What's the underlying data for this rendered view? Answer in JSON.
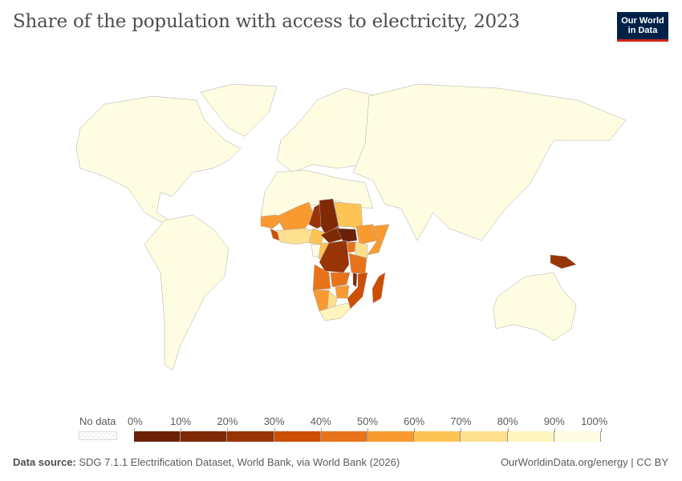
{
  "header": {
    "title": "Share of the population with access to electricity, 2023"
  },
  "logo": {
    "line1": "Our World",
    "line2": "in Data"
  },
  "legend": {
    "no_data_label": "No data",
    "tick_labels": [
      "0%",
      "10%",
      "20%",
      "30%",
      "40%",
      "50%",
      "60%",
      "70%",
      "80%",
      "90%",
      "100%"
    ],
    "bin_colors": [
      "#6b2106",
      "#7f2a04",
      "#983405",
      "#cc4f04",
      "#e8731b",
      "#f99a30",
      "#fdc454",
      "#fde08f",
      "#fff5bd",
      "#fffde1"
    ]
  },
  "map": {
    "regions": {
      "north_america": 95,
      "greenland": 100,
      "south_america": 97,
      "europe": 100,
      "north_africa": 100,
      "asia": 98,
      "australia": 100,
      "png": 20,
      "mauritania": 50,
      "mali": 55,
      "niger": 25,
      "chad": 14,
      "sudan": 65,
      "car": 16,
      "south_sudan": 8,
      "ethiopia": 55,
      "somalia": 52,
      "nigeria": 62,
      "west_africa": 75,
      "sierra_leone": 32,
      "drc": 22,
      "congo": 68,
      "gabon": 94,
      "uganda": 48,
      "kenya": 77,
      "tanzania": 46,
      "angola": 49,
      "zambia": 48,
      "malawi": 15,
      "mozambique": 35,
      "zimbabwe": 50,
      "namibia": 58,
      "botswana": 75,
      "south_africa": 87,
      "madagascar": 37
    }
  },
  "footer": {
    "source_label": "Data source:",
    "source_text": "SDG 7.1.1 Electrification Dataset, World Bank, via World Bank (2026)",
    "right_text": "OurWorldinData.org/energy | CC BY"
  }
}
